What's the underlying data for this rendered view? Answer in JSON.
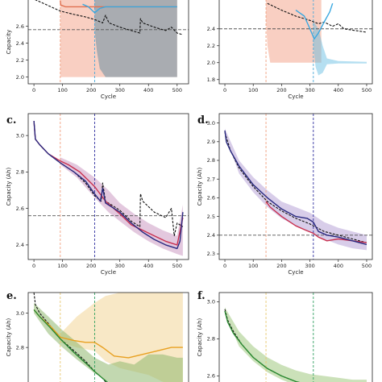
{
  "chart_data": [
    {
      "panel": "a.",
      "type": "line",
      "xlabel": "Cycle",
      "ylabel": "Capacity",
      "xlim": [
        -20,
        540
      ],
      "ylim": [
        1.92,
        2.92
      ],
      "xticks": [
        0,
        100,
        200,
        300,
        400,
        500
      ],
      "yticks": [
        2.0,
        2.2,
        2.4,
        2.6
      ],
      "vlines": [
        {
          "x": 92,
          "color": "#f0a080"
        },
        {
          "x": 212,
          "color": "#4aa8d8"
        }
      ],
      "hline": 2.56,
      "series": [
        {
          "kind": "true",
          "color": "#111111",
          "x": [
            -20,
            40,
            92,
            140,
            180,
            212,
            240,
            250,
            262,
            300,
            340,
            370,
            372,
            380,
            420,
            460,
            480,
            500,
            520
          ],
          "y": [
            2.95,
            2.86,
            2.78,
            2.74,
            2.71,
            2.68,
            2.64,
            2.73,
            2.64,
            2.59,
            2.55,
            2.52,
            2.69,
            2.64,
            2.59,
            2.55,
            2.59,
            2.52,
            2.5
          ]
        },
        {
          "kind": "pred-a",
          "color": "#e07050",
          "x": [
            92,
            94,
            110,
            140,
            180,
            212,
            230,
            260,
            300,
            400,
            500
          ],
          "y": [
            2.9,
            2.85,
            2.83,
            2.83,
            2.83,
            2.83,
            2.83,
            2.83,
            2.83,
            2.83,
            2.83
          ]
        },
        {
          "kind": "pred-b",
          "color": "#3aa8e0",
          "x": [
            170,
            190,
            212,
            230,
            250,
            280,
            330,
            400,
            500
          ],
          "y": [
            2.86,
            2.83,
            2.76,
            2.81,
            2.83,
            2.83,
            2.83,
            2.83,
            2.83
          ]
        }
      ],
      "bands": [
        {
          "color": "#f4a890",
          "opacity": 0.55,
          "x": [
            92,
            100,
            120,
            150,
            200,
            300,
            400,
            500
          ],
          "lo": [
            2.0,
            2.0,
            2.0,
            2.0,
            2.0,
            2.0,
            2.0,
            2.0
          ],
          "hi": [
            2.95,
            2.95,
            2.95,
            2.95,
            2.95,
            2.95,
            2.95,
            2.95
          ]
        },
        {
          "color": "#5a8aa0",
          "opacity": 0.5,
          "x": [
            212,
            220,
            230,
            250,
            300,
            400,
            500
          ],
          "lo": [
            2.55,
            2.3,
            2.1,
            2.0,
            2.0,
            2.0,
            2.0
          ],
          "hi": [
            2.95,
            2.95,
            2.95,
            2.95,
            2.95,
            2.95,
            2.95
          ]
        }
      ]
    },
    {
      "panel": "b.",
      "type": "line",
      "xlabel": "Cycle",
      "ylabel": "",
      "xlim": [
        -20,
        520
      ],
      "ylim": [
        1.75,
        2.75
      ],
      "xticks": [
        0,
        100,
        200,
        300,
        400,
        500
      ],
      "yticks": [
        1.8,
        2.0,
        2.2,
        2.4
      ],
      "vlines": [
        {
          "x": 145,
          "color": "#f0a080"
        },
        {
          "x": 312,
          "color": "#4aa8d8"
        }
      ],
      "hline": 2.4,
      "series": [
        {
          "kind": "true",
          "color": "#111111",
          "x": [
            150,
            200,
            250,
            300,
            330,
            350,
            380,
            400,
            420,
            460,
            500
          ],
          "y": [
            2.7,
            2.62,
            2.55,
            2.5,
            2.46,
            2.48,
            2.43,
            2.46,
            2.4,
            2.38,
            2.36
          ]
        },
        {
          "kind": "pred-b",
          "color": "#3aa8e0",
          "x": [
            250,
            280,
            300,
            315,
            330,
            350,
            370,
            380
          ],
          "y": [
            2.62,
            2.55,
            2.4,
            2.28,
            2.35,
            2.48,
            2.6,
            2.7
          ]
        }
      ],
      "bands": [
        {
          "color": "#f4a890",
          "opacity": 0.55,
          "x": [
            145,
            150,
            160,
            200,
            300,
            330,
            340
          ],
          "lo": [
            2.5,
            2.2,
            2.0,
            2.0,
            2.0,
            2.0,
            2.0
          ],
          "hi": [
            2.8,
            2.8,
            2.8,
            2.8,
            2.8,
            2.8,
            2.8
          ]
        },
        {
          "color": "#5ab8e0",
          "opacity": 0.45,
          "x": [
            312,
            320,
            330,
            345,
            360,
            400,
            500
          ],
          "lo": [
            2.2,
            1.95,
            1.85,
            1.88,
            1.98,
            1.99,
            1.99
          ],
          "hi": [
            2.5,
            2.45,
            2.4,
            2.2,
            2.05,
            2.02,
            2.01
          ]
        }
      ]
    },
    {
      "panel": "c.",
      "type": "line",
      "xlabel": "Cycle",
      "ylabel": "Capacity (Ah)",
      "xlim": [
        -20,
        540
      ],
      "ylim": [
        2.32,
        3.12
      ],
      "xticks": [
        0,
        100,
        200,
        300,
        400,
        500
      ],
      "yticks": [
        2.4,
        2.6,
        2.8,
        3.0
      ],
      "vlines": [
        {
          "x": 92,
          "color": "#f0a080"
        },
        {
          "x": 212,
          "color": "#3030a0"
        }
      ],
      "hline": 2.56,
      "series": [
        {
          "kind": "true",
          "color": "#111111",
          "x": [
            0,
            5,
            20,
            50,
            92,
            140,
            180,
            212,
            235,
            240,
            250,
            300,
            340,
            370,
            372,
            380,
            420,
            460,
            480,
            490,
            500,
            520
          ],
          "y": [
            3.08,
            2.98,
            2.95,
            2.9,
            2.85,
            2.8,
            2.74,
            2.67,
            2.64,
            2.74,
            2.64,
            2.59,
            2.53,
            2.5,
            2.68,
            2.64,
            2.58,
            2.55,
            2.6,
            2.45,
            2.52,
            2.5
          ]
        },
        {
          "kind": "pred-a",
          "color": "#c83050",
          "x": [
            0,
            5,
            20,
            50,
            92,
            120,
            160,
            212,
            250,
            300,
            340,
            380,
            420,
            460,
            500,
            520
          ],
          "y": [
            3.08,
            2.98,
            2.95,
            2.9,
            2.86,
            2.84,
            2.8,
            2.72,
            2.64,
            2.57,
            2.51,
            2.48,
            2.45,
            2.42,
            2.4,
            2.55
          ]
        },
        {
          "kind": "pred-b",
          "color": "#2a2a80",
          "x": [
            0,
            5,
            20,
            50,
            92,
            140,
            180,
            212,
            232,
            240,
            250,
            300,
            340,
            380,
            420,
            460,
            500,
            510,
            520
          ],
          "y": [
            3.08,
            2.98,
            2.95,
            2.9,
            2.85,
            2.8,
            2.75,
            2.68,
            2.64,
            2.71,
            2.63,
            2.58,
            2.52,
            2.47,
            2.43,
            2.4,
            2.38,
            2.42,
            2.58
          ]
        }
      ],
      "bands": [
        {
          "color": "#b060a0",
          "opacity": 0.35,
          "x": [
            92,
            150,
            212,
            260,
            300,
            350,
            400,
            450,
            500,
            520
          ],
          "lo": [
            2.84,
            2.77,
            2.66,
            2.58,
            2.53,
            2.47,
            2.42,
            2.38,
            2.35,
            2.34
          ],
          "hi": [
            2.88,
            2.84,
            2.77,
            2.7,
            2.63,
            2.57,
            2.52,
            2.48,
            2.45,
            2.62
          ]
        }
      ]
    },
    {
      "panel": "d.",
      "type": "line",
      "xlabel": "Cycle",
      "ylabel": "Capacity (Ah)",
      "xlim": [
        -20,
        520
      ],
      "ylim": [
        2.27,
        3.05
      ],
      "xticks": [
        0,
        100,
        200,
        300,
        400,
        500
      ],
      "yticks": [
        2.3,
        2.4,
        2.5,
        2.6,
        2.7,
        2.8,
        2.9,
        3.0
      ],
      "vlines": [
        {
          "x": 145,
          "color": "#f0a080"
        },
        {
          "x": 312,
          "color": "#3030a0"
        }
      ],
      "hline": 2.4,
      "series": [
        {
          "kind": "true",
          "color": "#111111",
          "x": [
            0,
            20,
            50,
            100,
            150,
            200,
            250,
            300,
            312,
            350,
            400,
            450,
            500
          ],
          "y": [
            2.95,
            2.85,
            2.76,
            2.66,
            2.58,
            2.53,
            2.49,
            2.46,
            2.45,
            2.42,
            2.4,
            2.38,
            2.36
          ]
        },
        {
          "kind": "pred-a",
          "color": "#c83050",
          "x": [
            145,
            160,
            200,
            230,
            250,
            280,
            312,
            330,
            360,
            400,
            450,
            500
          ],
          "y": [
            2.58,
            2.55,
            2.5,
            2.47,
            2.45,
            2.43,
            2.41,
            2.39,
            2.37,
            2.38,
            2.37,
            2.36
          ]
        },
        {
          "kind": "pred-b",
          "color": "#2a2a80",
          "x": [
            0,
            5,
            20,
            50,
            100,
            150,
            200,
            250,
            290,
            312,
            330,
            360,
            400,
            450,
            500
          ],
          "y": [
            2.96,
            2.9,
            2.85,
            2.77,
            2.67,
            2.6,
            2.54,
            2.5,
            2.49,
            2.47,
            2.42,
            2.4,
            2.39,
            2.37,
            2.35
          ]
        }
      ],
      "bands": [
        {
          "color": "#9070c0",
          "opacity": 0.35,
          "x": [
            0,
            50,
            100,
            150,
            200,
            250,
            300,
            350,
            400,
            450,
            500
          ],
          "lo": [
            2.94,
            2.73,
            2.63,
            2.55,
            2.49,
            2.45,
            2.42,
            2.38,
            2.35,
            2.33,
            2.32
          ],
          "hi": [
            2.97,
            2.8,
            2.71,
            2.64,
            2.58,
            2.55,
            2.52,
            2.47,
            2.44,
            2.42,
            2.4
          ]
        }
      ]
    },
    {
      "panel": "e.",
      "type": "line",
      "xlabel": "",
      "ylabel": "Capacity (Ah)",
      "xlim": [
        -20,
        540
      ],
      "ylim": [
        2.58,
        3.12
      ],
      "xticks": [],
      "yticks": [
        2.6,
        2.8,
        3.0
      ],
      "vlines": [
        {
          "x": 92,
          "color": "#e8c870"
        },
        {
          "x": 212,
          "color": "#30a060"
        }
      ],
      "hline": null,
      "series": [
        {
          "kind": "true",
          "color": "#111111",
          "x": [
            0,
            5,
            20,
            50,
            92,
            140,
            180,
            212,
            240,
            260
          ],
          "y": [
            3.12,
            3.05,
            3.0,
            2.94,
            2.85,
            2.78,
            2.72,
            2.66,
            2.62,
            2.58
          ]
        },
        {
          "kind": "pred-a",
          "color": "#e8a020",
          "x": [
            0,
            20,
            60,
            92,
            140,
            180,
            212,
            240,
            280,
            330,
            380,
            430,
            480,
            520
          ],
          "y": [
            3.02,
            2.98,
            2.92,
            2.86,
            2.84,
            2.83,
            2.83,
            2.8,
            2.75,
            2.74,
            2.76,
            2.78,
            2.8,
            2.8
          ]
        },
        {
          "kind": "pred-b",
          "color": "#2a8a30",
          "x": [
            0,
            20,
            60,
            92,
            140,
            180,
            212,
            240,
            270
          ],
          "y": [
            3.02,
            2.98,
            2.91,
            2.85,
            2.77,
            2.71,
            2.66,
            2.62,
            2.58
          ]
        }
      ],
      "bands": [
        {
          "color": "#f4d8a0",
          "opacity": 0.6,
          "x": [
            92,
            150,
            212,
            250,
            300,
            350,
            400,
            450,
            500,
            520
          ],
          "lo": [
            2.83,
            2.8,
            2.78,
            2.72,
            2.68,
            2.66,
            2.64,
            2.6,
            2.58,
            2.58
          ],
          "hi": [
            2.88,
            2.98,
            3.06,
            3.1,
            3.12,
            3.12,
            3.12,
            3.12,
            3.12,
            3.12
          ]
        },
        {
          "color": "#90b870",
          "opacity": 0.55,
          "x": [
            0,
            50,
            100,
            150,
            212,
            260,
            300,
            350,
            400,
            450,
            500,
            520
          ],
          "lo": [
            3.0,
            2.88,
            2.8,
            2.73,
            2.65,
            2.6,
            2.58,
            2.58,
            2.58,
            2.58,
            2.58,
            2.58
          ],
          "hi": [
            3.06,
            2.98,
            2.9,
            2.83,
            2.74,
            2.7,
            2.72,
            2.7,
            2.76,
            2.76,
            2.74,
            2.74
          ]
        }
      ]
    },
    {
      "panel": "f.",
      "type": "line",
      "xlabel": "",
      "ylabel": "Capacity (Ah)",
      "xlim": [
        -20,
        520
      ],
      "ylim": [
        2.55,
        3.05
      ],
      "xticks": [],
      "yticks": [
        2.6,
        2.8,
        3.0
      ],
      "vlines": [
        {
          "x": 145,
          "color": "#e8c870"
        },
        {
          "x": 312,
          "color": "#30a060"
        }
      ],
      "hline": null,
      "series": [
        {
          "kind": "true",
          "color": "#111111",
          "x": [
            0,
            10,
            30,
            60,
            100,
            150,
            200,
            250,
            300
          ],
          "y": [
            2.96,
            2.9,
            2.84,
            2.77,
            2.7,
            2.64,
            2.6,
            2.57,
            2.55
          ]
        },
        {
          "kind": "pred-b",
          "color": "#2a8a30",
          "x": [
            0,
            10,
            30,
            60,
            100,
            150,
            200,
            250,
            300
          ],
          "y": [
            2.95,
            2.89,
            2.83,
            2.77,
            2.7,
            2.64,
            2.6,
            2.57,
            2.55
          ]
        }
      ],
      "bands": [
        {
          "color": "#a0c880",
          "opacity": 0.55,
          "x": [
            0,
            50,
            100,
            150,
            200,
            250,
            300,
            350,
            400,
            450,
            500
          ],
          "lo": [
            2.94,
            2.76,
            2.68,
            2.62,
            2.58,
            2.55,
            2.55,
            2.55,
            2.55,
            2.55,
            2.55
          ],
          "hi": [
            2.97,
            2.84,
            2.76,
            2.7,
            2.66,
            2.63,
            2.61,
            2.6,
            2.59,
            2.58,
            2.58
          ]
        }
      ]
    }
  ]
}
